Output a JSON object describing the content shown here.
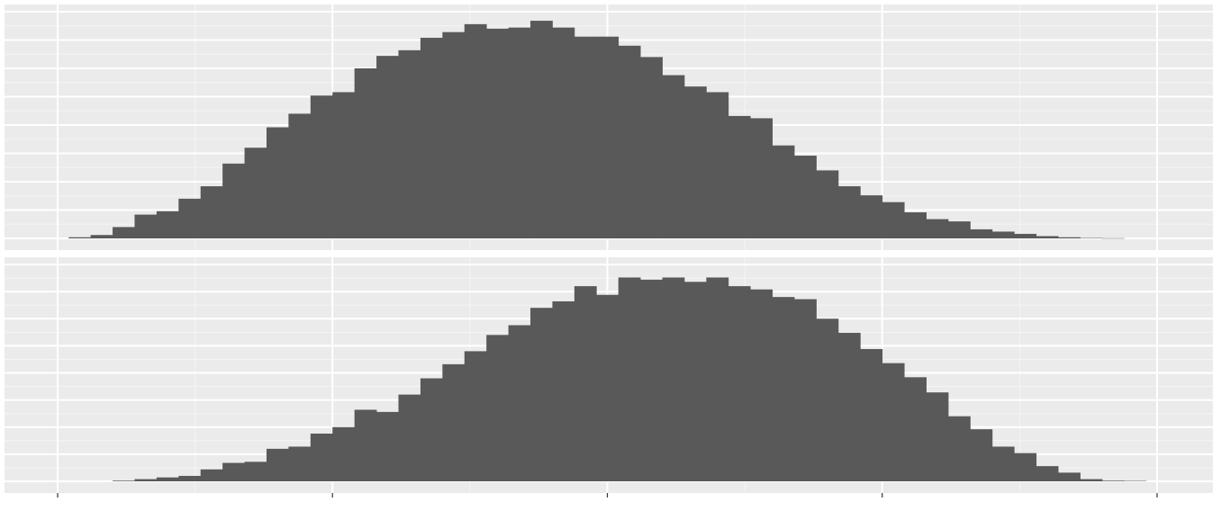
{
  "chart_data": [
    {
      "type": "bar",
      "panel": "top",
      "grid": true,
      "xlim": [
        0,
        100
      ],
      "ylim": [
        0,
        100
      ],
      "x": [
        2,
        4,
        6,
        8,
        10,
        12,
        14,
        16,
        18,
        20,
        22,
        24,
        26,
        28,
        30,
        32,
        34,
        36,
        38,
        40,
        42,
        44,
        46,
        48,
        50,
        52,
        54,
        56,
        58,
        60,
        62,
        64,
        66,
        68,
        70,
        72,
        74,
        76,
        78,
        80,
        82,
        84,
        86,
        88,
        90,
        92,
        94,
        96
      ],
      "values": [
        0.5,
        1.5,
        5,
        10.5,
        12,
        17.5,
        23,
        33,
        40,
        49,
        55,
        63,
        64.5,
        75,
        80.5,
        83,
        88.5,
        91,
        94.5,
        92.5,
        93,
        96,
        93,
        89,
        89,
        85,
        80,
        72,
        67,
        64.5,
        54,
        53,
        41,
        36.5,
        30,
        23,
        19,
        16,
        11.5,
        8.5,
        7.5,
        4,
        3,
        2,
        1,
        0.5,
        0.2,
        0.1
      ]
    },
    {
      "type": "bar",
      "panel": "bottom",
      "grid": true,
      "xlim": [
        0,
        100
      ],
      "ylim": [
        0,
        100
      ],
      "x": [
        6,
        8,
        10,
        12,
        14,
        16,
        18,
        20,
        22,
        24,
        26,
        28,
        30,
        32,
        34,
        36,
        38,
        40,
        42,
        44,
        46,
        48,
        50,
        52,
        54,
        56,
        58,
        60,
        62,
        64,
        66,
        68,
        70,
        72,
        74,
        76,
        78,
        80,
        82,
        84,
        86,
        88,
        90,
        92,
        94,
        96,
        98
      ],
      "values": [
        0.3,
        1,
        1.8,
        2.5,
        5.5,
        8.5,
        9,
        15,
        16,
        22,
        25,
        33,
        32,
        40,
        47.5,
        54,
        60,
        67.5,
        72,
        80,
        83,
        90,
        86,
        94,
        93,
        94,
        92,
        94,
        90,
        88.5,
        85,
        84,
        75,
        68.5,
        61,
        54.5,
        48,
        41,
        30,
        24,
        16,
        13,
        7,
        4,
        1,
        0.3,
        0.2
      ]
    }
  ]
}
